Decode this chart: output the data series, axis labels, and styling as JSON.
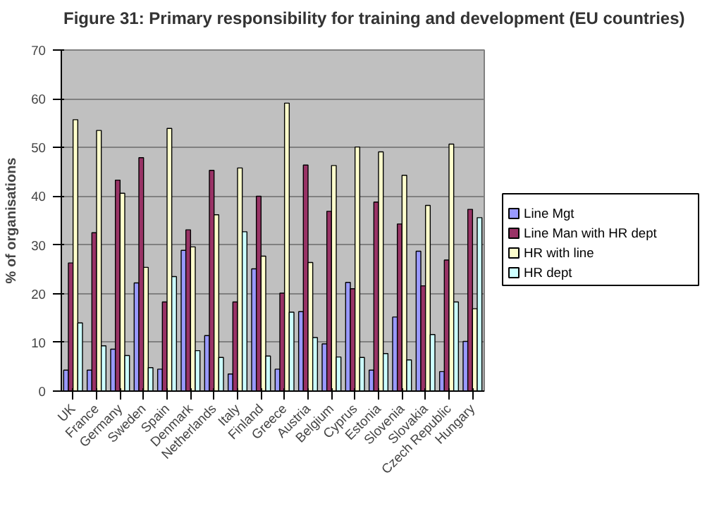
{
  "chart_data": {
    "type": "bar",
    "title": "Figure 31: Primary responsibility for training and development (EU countries)",
    "ylabel": "% of organisations",
    "categories": [
      "UK",
      "France",
      "Germany",
      "Sweden",
      "Spain",
      "Denmark",
      "Netherlands",
      "Italy",
      "Finland",
      "Greece",
      "Austria",
      "Belgium",
      "Cyprus",
      "Estonia",
      "Slovenia",
      "Slovakia",
      "Czech Republic",
      "Hungary"
    ],
    "series": [
      {
        "name": "Line Mgt",
        "color": "#9999ff",
        "values": [
          4.3,
          4.3,
          8.6,
          22.2,
          4.5,
          28.9,
          11.4,
          3.5,
          25.1,
          4.5,
          16.3,
          9.7,
          22.3,
          4.3,
          15.2,
          28.7,
          4.0,
          10.2
        ]
      },
      {
        "name": "Line Man with HR dept",
        "color": "#993366",
        "values": [
          26.3,
          32.5,
          43.3,
          47.9,
          18.3,
          33.1,
          45.3,
          18.3,
          40.0,
          20.1,
          46.4,
          36.9,
          21.0,
          38.8,
          34.3,
          21.6,
          26.9,
          37.3
        ]
      },
      {
        "name": "HR with line",
        "color": "#ffffcc",
        "values": [
          55.7,
          53.5,
          40.6,
          25.4,
          53.9,
          29.6,
          36.2,
          45.8,
          27.7,
          59.1,
          26.4,
          46.3,
          50.1,
          49.1,
          44.3,
          38.1,
          50.7,
          16.9
        ]
      },
      {
        "name": "HR dept",
        "color": "#ccffff",
        "values": [
          14.0,
          9.3,
          7.3,
          4.8,
          23.5,
          8.3,
          6.9,
          32.7,
          7.2,
          16.2,
          11.0,
          7.0,
          6.9,
          7.7,
          6.4,
          11.6,
          18.3,
          35.6
        ]
      }
    ],
    "ylim": [
      0,
      70
    ],
    "yticks": [
      0,
      10,
      20,
      30,
      40,
      50,
      60,
      70
    ],
    "grid": "y",
    "legend": "right"
  }
}
